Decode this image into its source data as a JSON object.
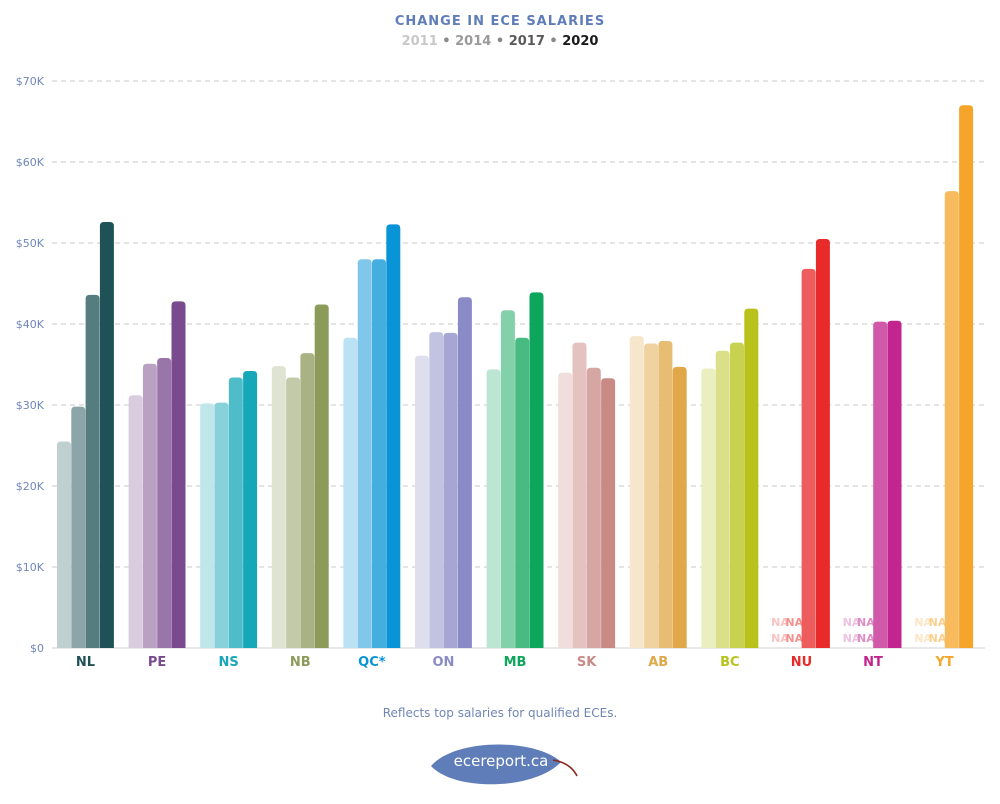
{
  "title": "CHANGE IN ECE SALARIES",
  "years": [
    {
      "label": "2011",
      "color": "#c8c8c8"
    },
    {
      "label": "2014",
      "color": "#9a9a9a"
    },
    {
      "label": "2017",
      "color": "#5a5a5a"
    },
    {
      "label": "2020",
      "color": "#1a1a1a"
    }
  ],
  "year_separator": "•",
  "footnote": "Reflects top salaries for qualified ECEs.",
  "logo_text": "ecereport.ca",
  "na_label": "NA",
  "chart_data": {
    "type": "bar",
    "title": "CHANGE IN ECE SALARIES",
    "xlabel": "",
    "ylabel": "",
    "ylim": [
      0,
      70000
    ],
    "yticks": [
      "$0",
      "$10K",
      "$20K",
      "$30K",
      "$40K",
      "$50K",
      "$60K",
      "$70K"
    ],
    "grid": true,
    "categories": [
      "NL",
      "PE",
      "NS",
      "NB",
      "QC*",
      "ON",
      "MB",
      "SK",
      "AB",
      "BC",
      "NU",
      "NT",
      "YT"
    ],
    "category_colors": [
      "#1f5257",
      "#7a4a8e",
      "#16a7b8",
      "#8c9a5a",
      "#0a94d8",
      "#8a8ac6",
      "#0ea65c",
      "#c98a86",
      "#e0a848",
      "#b8c21a",
      "#e82a2a",
      "#c2258e",
      "#f4a52a"
    ],
    "series": [
      {
        "name": "2011",
        "values": [
          25500,
          31200,
          30200,
          34800,
          38300,
          36100,
          34400,
          34000,
          38500,
          34500,
          null,
          null,
          null
        ]
      },
      {
        "name": "2014",
        "values": [
          29800,
          35100,
          30300,
          33400,
          48000,
          39000,
          41700,
          37700,
          37600,
          36700,
          null,
          null,
          null
        ]
      },
      {
        "name": "2017",
        "values": [
          43600,
          35800,
          33400,
          36400,
          48000,
          38900,
          38300,
          34600,
          37900,
          37700,
          46800,
          40300,
          56400
        ]
      },
      {
        "name": "2020",
        "values": [
          52600,
          42800,
          34200,
          42400,
          52300,
          43300,
          43900,
          33300,
          34700,
          41900,
          50500,
          40400,
          67000
        ]
      }
    ]
  }
}
